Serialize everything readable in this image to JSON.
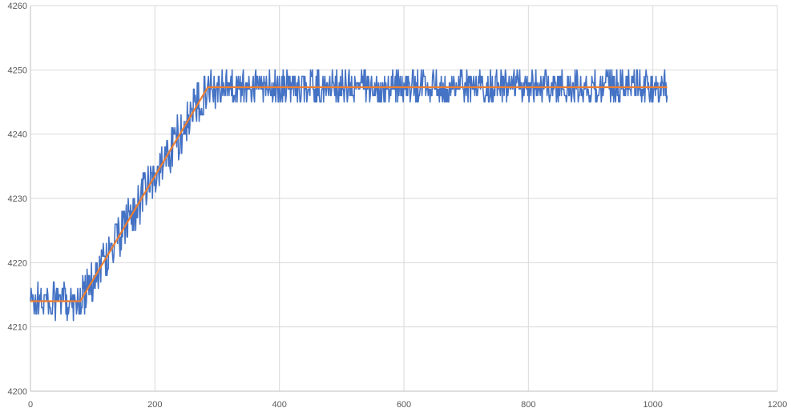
{
  "chart_data": {
    "type": "line",
    "title": "",
    "xlabel": "",
    "ylabel": "",
    "xlim": [
      0,
      1200
    ],
    "ylim": [
      4200,
      4260
    ],
    "x_ticks": [
      0,
      200,
      400,
      600,
      800,
      1000,
      1200
    ],
    "y_ticks": [
      4200,
      4210,
      4220,
      4230,
      4240,
      4250,
      4260
    ],
    "x_tick_labels": [
      "0",
      "200",
      "400",
      "600",
      "800",
      "1000",
      "1200"
    ],
    "y_tick_labels": [
      "4200",
      "4210",
      "4220",
      "4230",
      "4240",
      "4250",
      "4260"
    ],
    "grid": true,
    "legend": "none",
    "colors": {
      "series_1": "#4472C4",
      "series_2": "#ED7D31",
      "grid": "#D9D9D9",
      "axis": "#BFBFBF"
    },
    "series": [
      {
        "style": "noisy",
        "x_start": 0,
        "x_end": 1023,
        "x_step": 1,
        "envelope": [
          [
            0,
            4214.0
          ],
          [
            80,
            4214.0
          ],
          [
            285,
            4247.3
          ],
          [
            1023,
            4247.3
          ]
        ],
        "noise": [
          {
            "x_from": 0,
            "x_to": 80,
            "amplitude": 3.0
          },
          {
            "x_from": 80,
            "x_to": 300,
            "amplitude": 3.5
          },
          {
            "x_from": 300,
            "x_to": 1023,
            "amplitude": 2.6
          }
        ],
        "observed_min": 4206,
        "observed_max": 4254
      },
      {
        "style": "piecewise",
        "x": [
          0,
          80,
          285,
          1023
        ],
        "y": [
          4214.0,
          4214.0,
          4247.3,
          4247.3
        ]
      }
    ]
  }
}
